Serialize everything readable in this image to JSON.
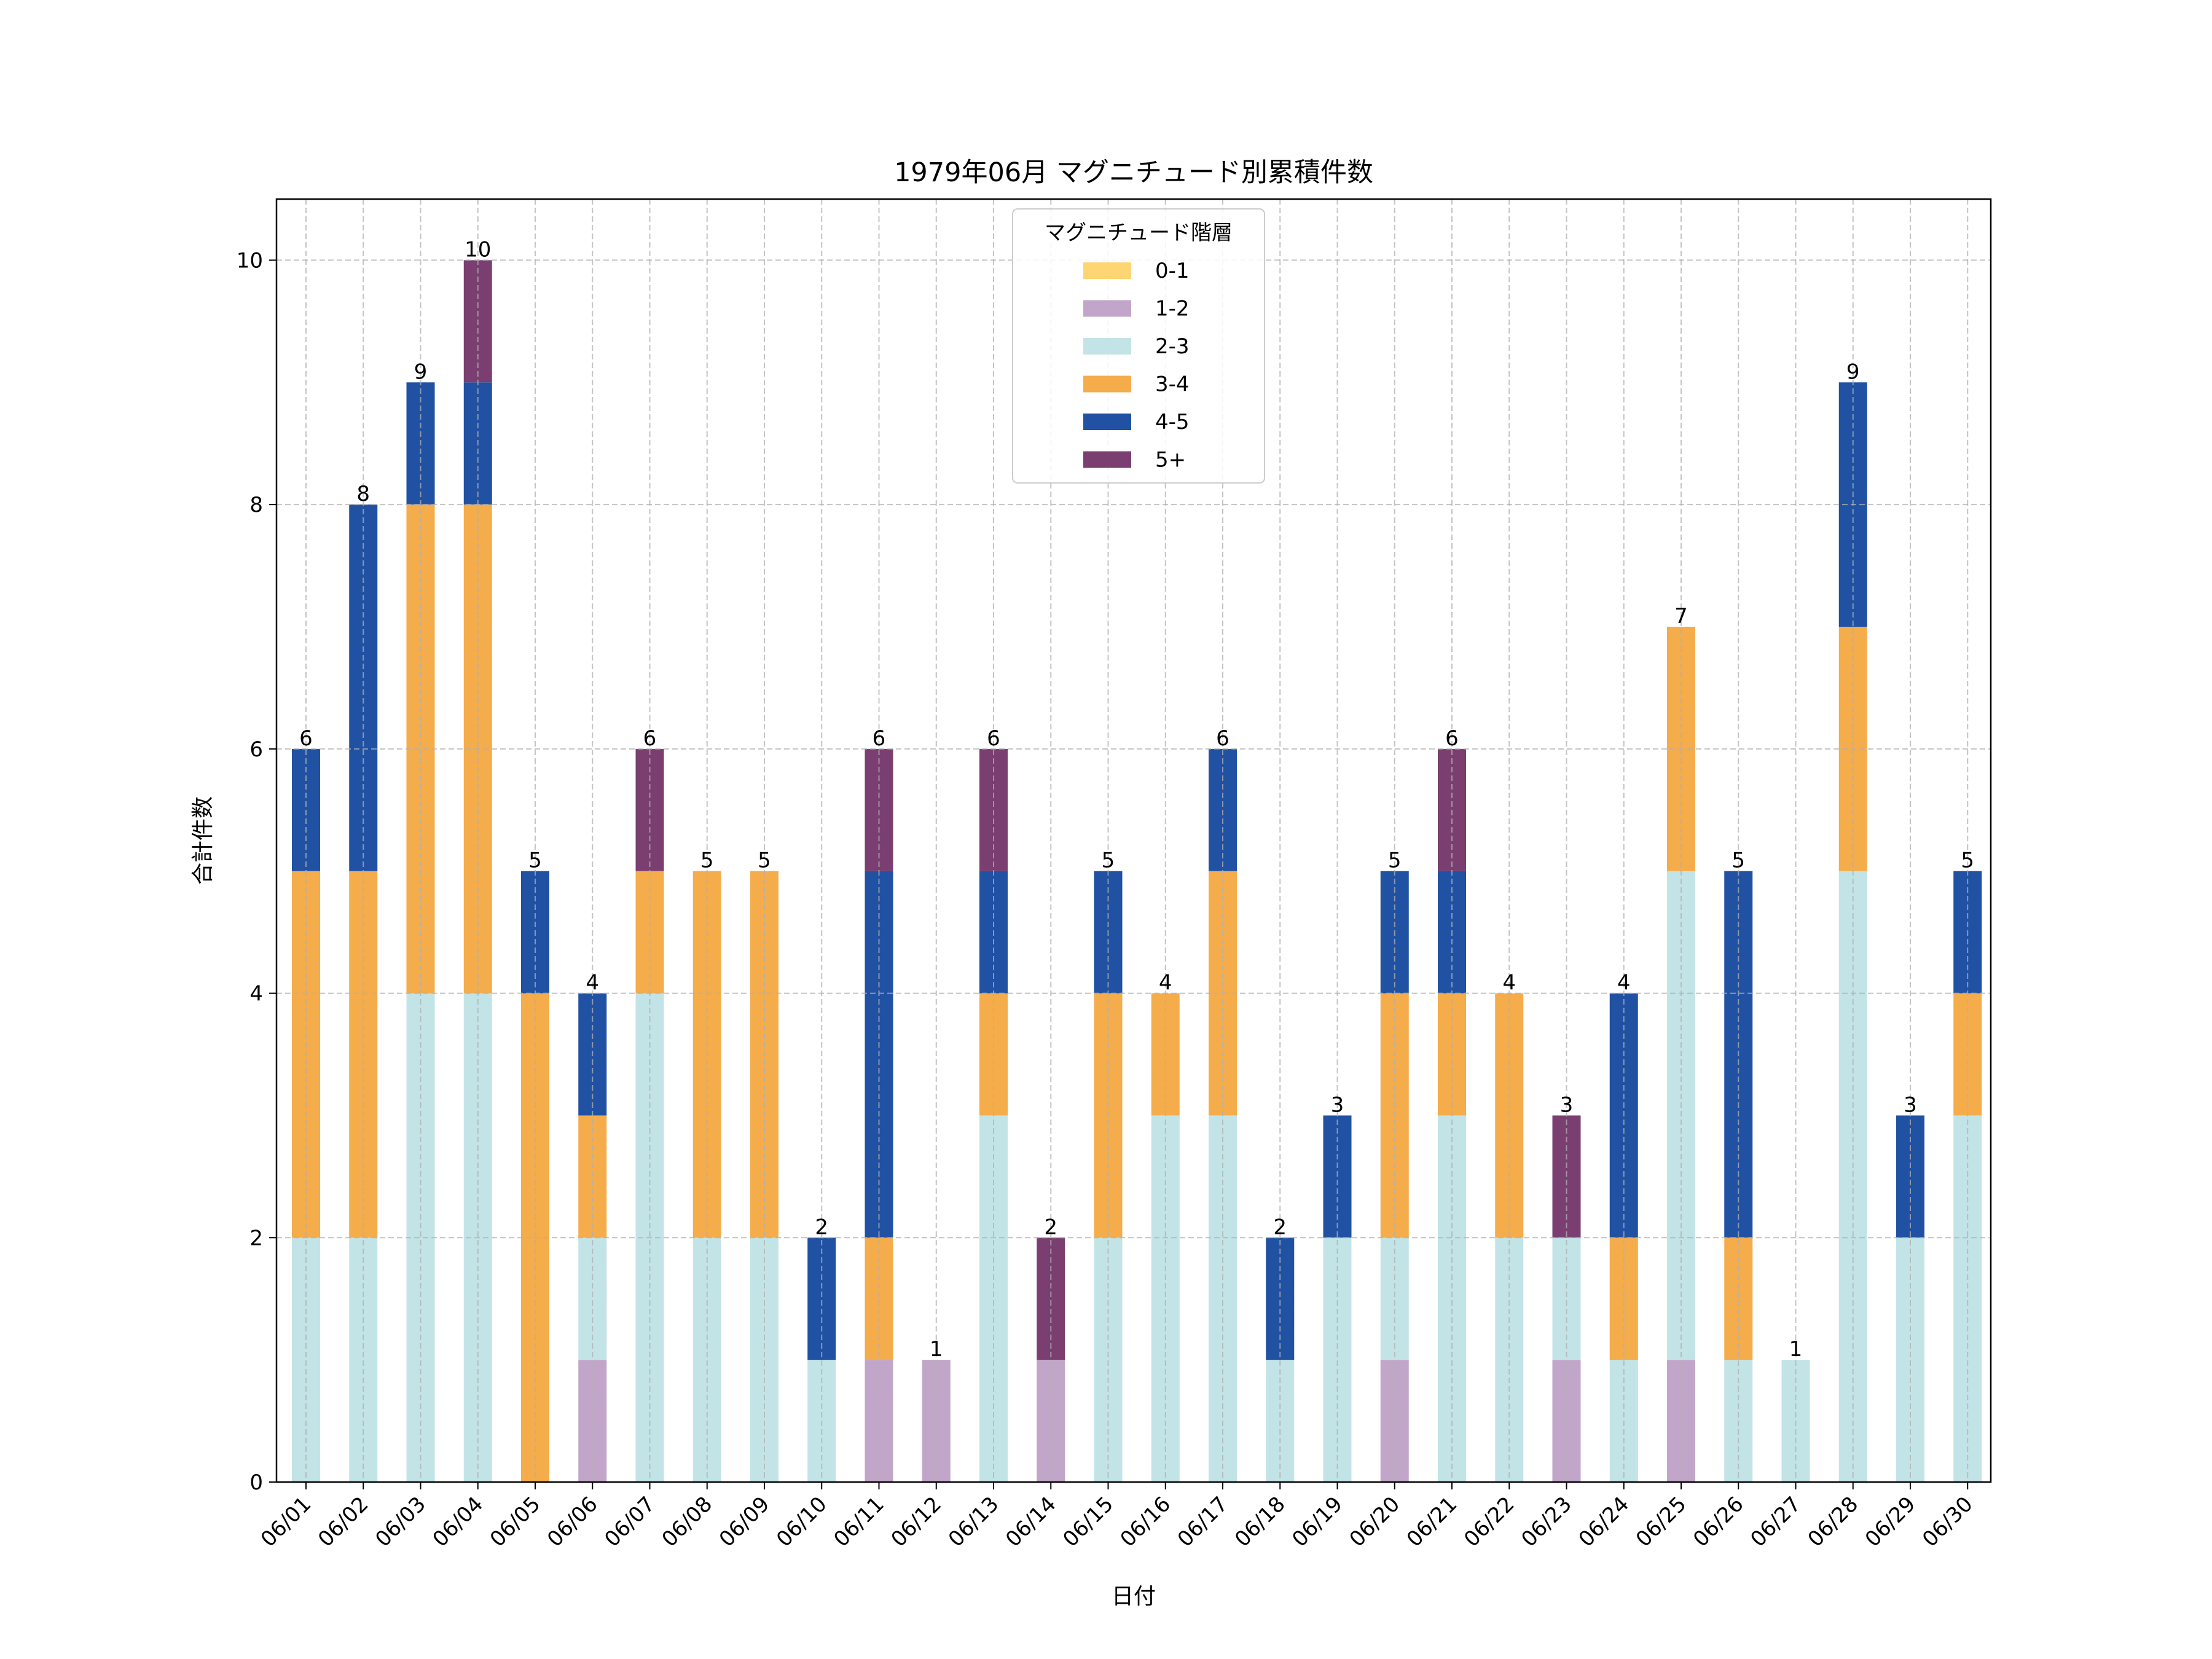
{
  "chart_data": {
    "type": "bar",
    "stacked": true,
    "title": "1979年06月 マグニチュード別累積件数",
    "xlabel": "日付",
    "ylabel": "合計件数",
    "ylim": [
      0,
      10.5
    ],
    "yticks": [
      0,
      2,
      4,
      6,
      8,
      10
    ],
    "grid": true,
    "legend": {
      "title": "マグニチュード階層",
      "position": "top-center"
    },
    "categories": [
      "06/01",
      "06/02",
      "06/03",
      "06/04",
      "06/05",
      "06/06",
      "06/07",
      "06/08",
      "06/09",
      "06/10",
      "06/11",
      "06/12",
      "06/13",
      "06/14",
      "06/15",
      "06/16",
      "06/17",
      "06/18",
      "06/19",
      "06/20",
      "06/21",
      "06/22",
      "06/23",
      "06/24",
      "06/25",
      "06/26",
      "06/27",
      "06/28",
      "06/29",
      "06/30"
    ],
    "series": [
      {
        "name": "0-1",
        "color": "#fdd673",
        "values": [
          0,
          0,
          0,
          0,
          0,
          0,
          0,
          0,
          0,
          0,
          0,
          0,
          0,
          0,
          0,
          0,
          0,
          0,
          0,
          0,
          0,
          0,
          0,
          0,
          0,
          0,
          0,
          0,
          0,
          0
        ]
      },
      {
        "name": "1-2",
        "color": "#c1a6c9",
        "values": [
          0,
          0,
          0,
          0,
          0,
          1,
          0,
          0,
          0,
          0,
          1,
          1,
          0,
          1,
          0,
          0,
          0,
          0,
          0,
          1,
          0,
          0,
          1,
          0,
          1,
          0,
          0,
          0,
          0,
          0
        ]
      },
      {
        "name": "2-3",
        "color": "#c3e4e6",
        "values": [
          2,
          2,
          4,
          4,
          0,
          1,
          4,
          2,
          2,
          1,
          0,
          0,
          3,
          0,
          2,
          3,
          3,
          1,
          2,
          1,
          3,
          2,
          1,
          1,
          4,
          1,
          1,
          5,
          2,
          3
        ]
      },
      {
        "name": "3-4",
        "color": "#f5ac4b",
        "values": [
          3,
          3,
          4,
          4,
          4,
          1,
          1,
          3,
          3,
          0,
          1,
          0,
          1,
          0,
          2,
          1,
          2,
          0,
          0,
          2,
          1,
          2,
          0,
          1,
          2,
          1,
          0,
          2,
          0,
          1
        ]
      },
      {
        "name": "4-5",
        "color": "#2051a3",
        "values": [
          1,
          3,
          1,
          1,
          1,
          1,
          0,
          0,
          0,
          1,
          3,
          0,
          1,
          0,
          1,
          0,
          1,
          1,
          1,
          1,
          1,
          0,
          0,
          2,
          0,
          3,
          0,
          2,
          1,
          1
        ]
      },
      {
        "name": "5+",
        "color": "#7a3f70",
        "values": [
          0,
          0,
          0,
          1,
          0,
          0,
          1,
          0,
          0,
          0,
          1,
          0,
          1,
          1,
          0,
          0,
          0,
          0,
          0,
          0,
          1,
          0,
          1,
          0,
          0,
          0,
          0,
          0,
          0,
          0
        ]
      }
    ],
    "totals": [
      6,
      8,
      9,
      10,
      5,
      4,
      6,
      5,
      5,
      2,
      6,
      1,
      6,
      2,
      5,
      4,
      6,
      2,
      3,
      5,
      6,
      4,
      3,
      4,
      7,
      5,
      1,
      9,
      3,
      5
    ]
  }
}
